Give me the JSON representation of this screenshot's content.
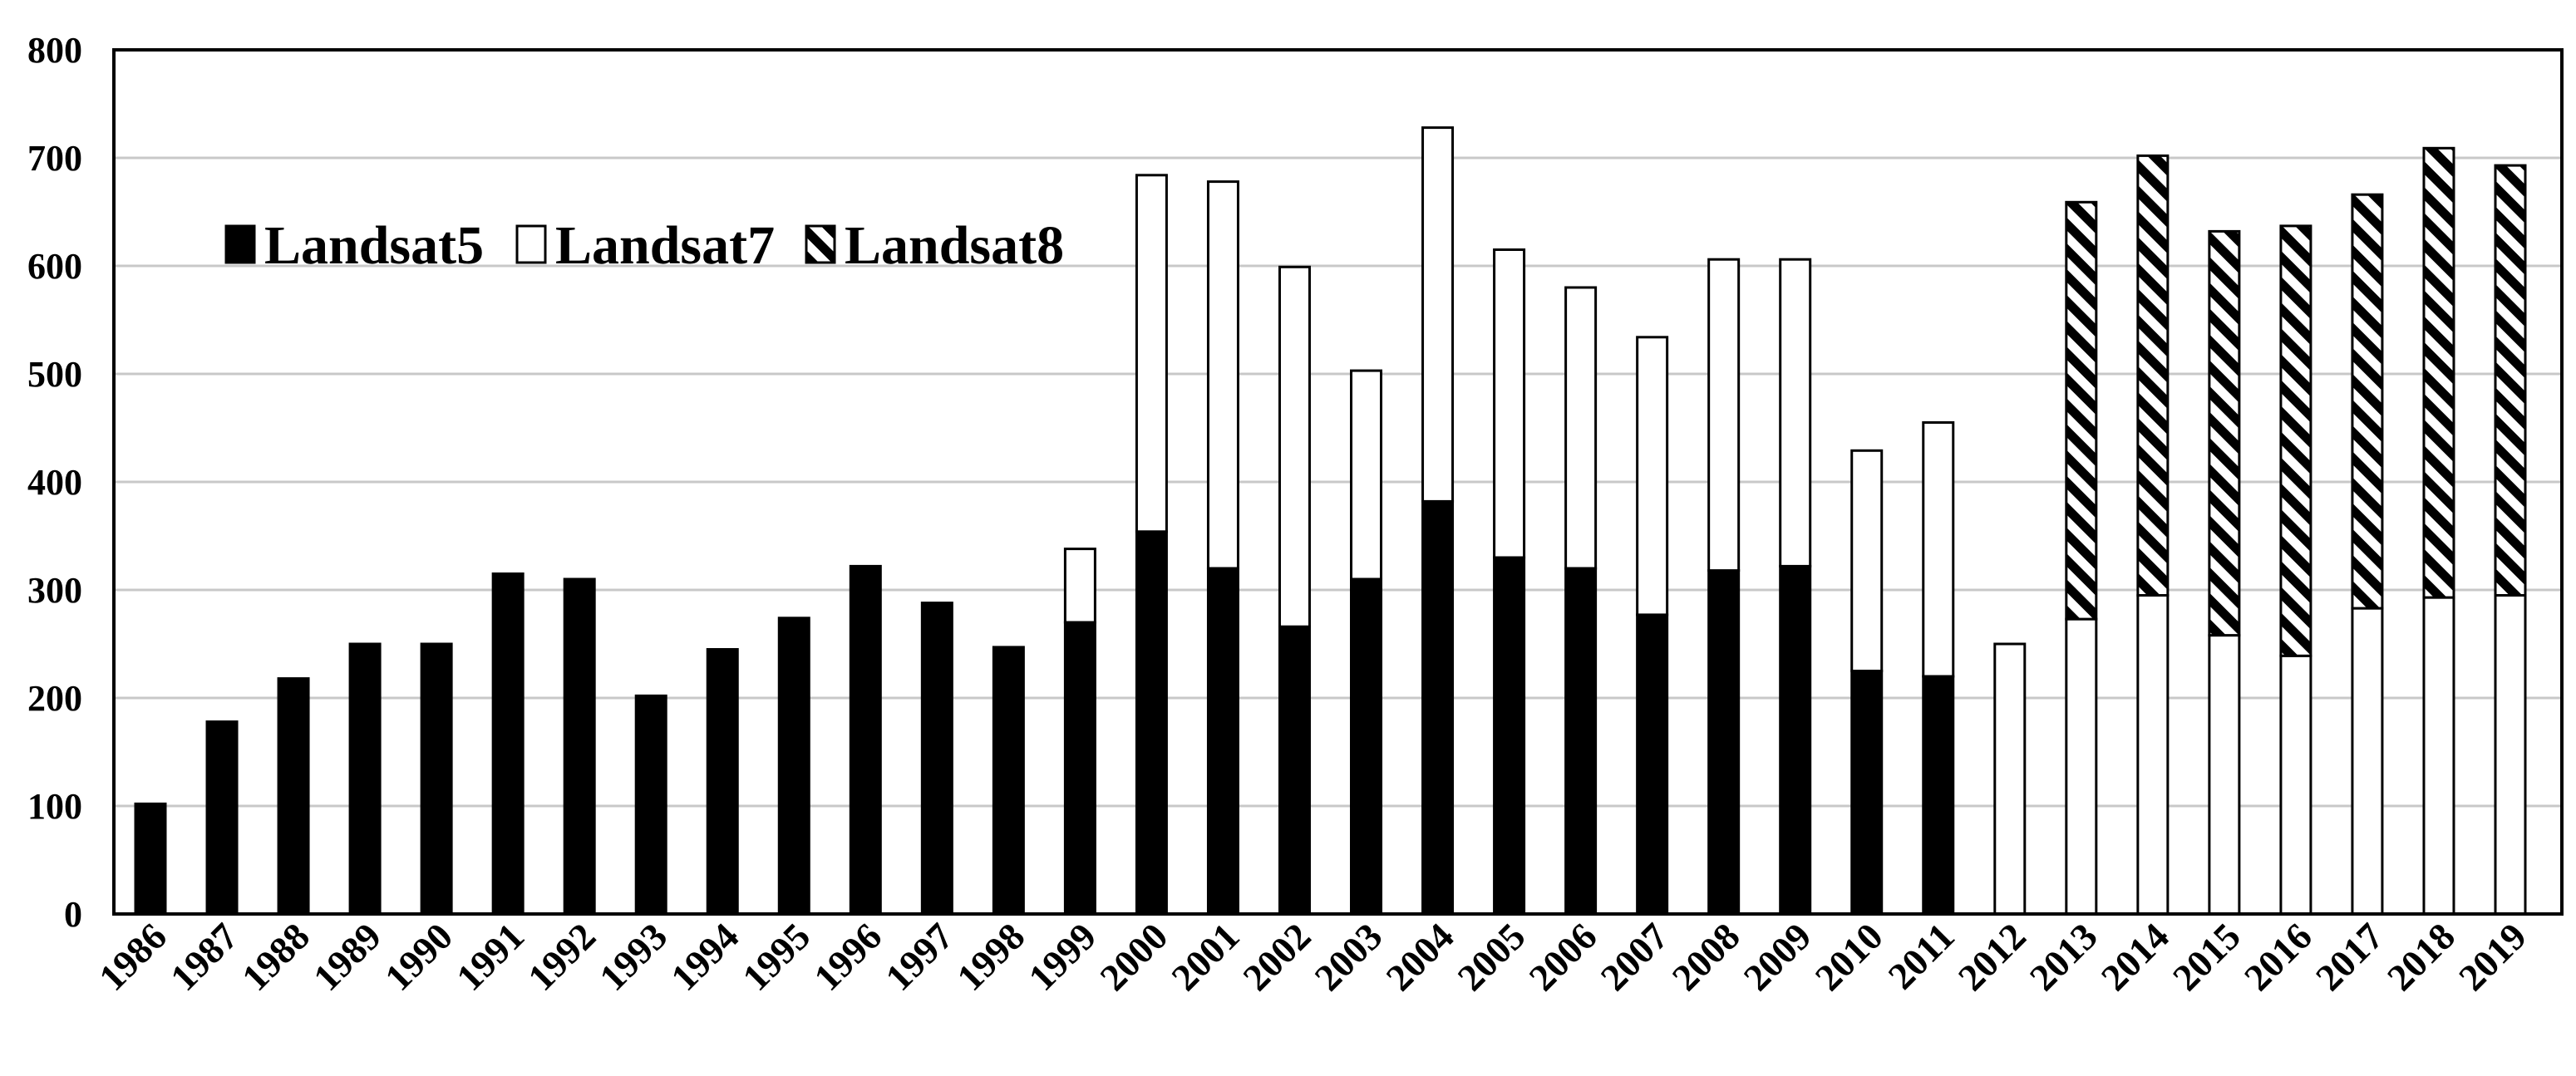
{
  "chart_data": {
    "type": "bar",
    "stacked": true,
    "title": "",
    "xlabel": "",
    "ylabel": "",
    "ylim": [
      0,
      800
    ],
    "yticks": [
      0,
      100,
      200,
      300,
      400,
      500,
      600,
      700,
      800
    ],
    "grid": "horizontal",
    "legend_position": "upper-left",
    "categories": [
      "1986",
      "1987",
      "1988",
      "1989",
      "1990",
      "1991",
      "1992",
      "1993",
      "1994",
      "1995",
      "1996",
      "1997",
      "1998",
      "1999",
      "2000",
      "2001",
      "2002",
      "2003",
      "2004",
      "2005",
      "2006",
      "2007",
      "2008",
      "2009",
      "2010",
      "2011",
      "2012",
      "2013",
      "2014",
      "2015",
      "2016",
      "2017",
      "2018",
      "2019"
    ],
    "series": [
      {
        "name": "Landsat5",
        "fill": "solid-black",
        "color": "#000000",
        "values": [
          102,
          178,
          218,
          250,
          250,
          315,
          310,
          202,
          245,
          274,
          322,
          288,
          247,
          270,
          354,
          320,
          266,
          310,
          382,
          330,
          320,
          277,
          318,
          322,
          225,
          220,
          0,
          0,
          0,
          0,
          0,
          0,
          0,
          0
        ]
      },
      {
        "name": "Landsat7",
        "fill": "white",
        "color": "#ffffff",
        "values": [
          0,
          0,
          0,
          0,
          0,
          0,
          0,
          0,
          0,
          0,
          0,
          0,
          0,
          68,
          330,
          358,
          333,
          193,
          346,
          285,
          260,
          257,
          288,
          284,
          204,
          235,
          250,
          273,
          295,
          258,
          239,
          283,
          293,
          295
        ]
      },
      {
        "name": "Landsat8",
        "fill": "diagonal-hatch",
        "color": "#000000",
        "values": [
          0,
          0,
          0,
          0,
          0,
          0,
          0,
          0,
          0,
          0,
          0,
          0,
          0,
          0,
          0,
          0,
          0,
          0,
          0,
          0,
          0,
          0,
          0,
          0,
          0,
          0,
          0,
          386,
          407,
          374,
          398,
          383,
          416,
          398
        ]
      }
    ]
  }
}
